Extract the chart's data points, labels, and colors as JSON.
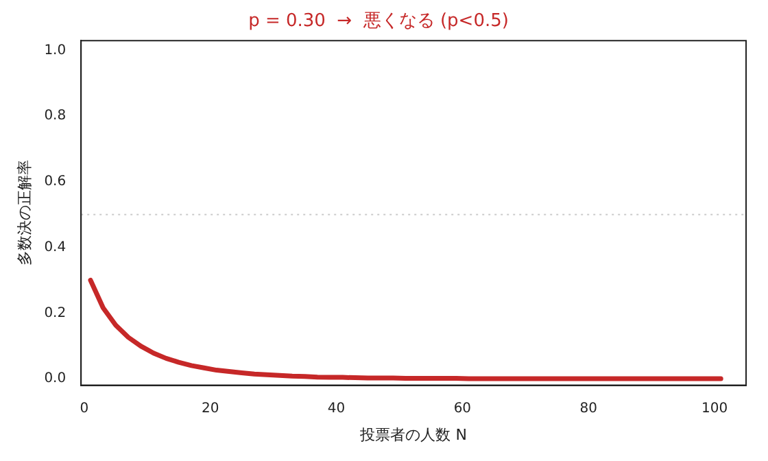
{
  "chart_data": {
    "type": "line",
    "title": "p = 0.30  →  悪くなる (p<0.5)",
    "xlabel": "投票者の人数 N",
    "ylabel": "多数決の正解率",
    "x": [
      1,
      3,
      5,
      7,
      9,
      11,
      13,
      15,
      17,
      19,
      21,
      23,
      25,
      27,
      29,
      31,
      33,
      35,
      37,
      39,
      41,
      43,
      45,
      47,
      49,
      51,
      53,
      55,
      57,
      59,
      61,
      63,
      65,
      67,
      69,
      71,
      73,
      75,
      77,
      79,
      81,
      83,
      85,
      87,
      89,
      91,
      93,
      95,
      97,
      99,
      101
    ],
    "series": [
      {
        "color": "#c62828",
        "values": [
          0.3,
          0.216,
          0.163,
          0.126,
          0.099,
          0.078,
          0.062,
          0.05,
          0.04,
          0.033,
          0.026,
          0.022,
          0.018,
          0.014,
          0.012,
          0.01,
          0.008,
          0.007,
          0.005,
          0.004,
          0.004,
          0.003,
          0.002,
          0.002,
          0.002,
          0.001,
          0.001,
          0.001,
          0.001,
          0.001,
          0,
          0,
          0,
          0,
          0,
          0,
          0,
          0,
          0,
          0,
          0,
          0,
          0,
          0,
          0,
          0,
          0,
          0,
          0,
          0,
          0
        ]
      }
    ],
    "xlim": [
      -0.5,
      105
    ],
    "xticks": [
      0,
      20,
      40,
      60,
      80,
      100
    ],
    "ylim": [
      -0.02,
      1.03
    ],
    "yticks": [
      {
        "value": 0,
        "label": "0.0"
      },
      {
        "value": 0.2,
        "label": "0.2"
      },
      {
        "value": 0.4,
        "label": "0.4"
      },
      {
        "value": 0.6,
        "label": "0.6"
      },
      {
        "value": 0.8,
        "label": "0.8"
      },
      {
        "value": 1,
        "label": "1.0"
      }
    ],
    "ref_lines": [
      {
        "axis": "y",
        "value": 0.5,
        "color": "#cccccc",
        "line_style": "dotted"
      }
    ],
    "grid": false,
    "legend": false,
    "marker": "none",
    "line_style": "solid"
  }
}
